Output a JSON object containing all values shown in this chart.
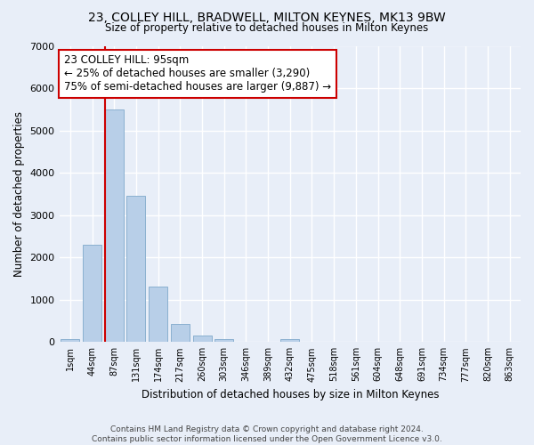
{
  "title1": "23, COLLEY HILL, BRADWELL, MILTON KEYNES, MK13 9BW",
  "title2": "Size of property relative to detached houses in Milton Keynes",
  "xlabel": "Distribution of detached houses by size in Milton Keynes",
  "ylabel": "Number of detached properties",
  "footnote1": "Contains HM Land Registry data © Crown copyright and database right 2024.",
  "footnote2": "Contains public sector information licensed under the Open Government Licence v3.0.",
  "bar_labels": [
    "1sqm",
    "44sqm",
    "87sqm",
    "131sqm",
    "174sqm",
    "217sqm",
    "260sqm",
    "303sqm",
    "346sqm",
    "389sqm",
    "432sqm",
    "475sqm",
    "518sqm",
    "561sqm",
    "604sqm",
    "648sqm",
    "691sqm",
    "734sqm",
    "777sqm",
    "820sqm",
    "863sqm"
  ],
  "bar_values": [
    80,
    2300,
    5500,
    3450,
    1300,
    430,
    160,
    80,
    5,
    5,
    70,
    5,
    0,
    0,
    0,
    0,
    0,
    0,
    0,
    0,
    0
  ],
  "bar_color": "#b8cfe8",
  "bar_edgecolor": "#8ab0d0",
  "background_color": "#e8eef8",
  "grid_color": "#ffffff",
  "vline_color": "#cc0000",
  "annotation_text": "23 COLLEY HILL: 95sqm\n← 25% of detached houses are smaller (3,290)\n75% of semi-detached houses are larger (9,887) →",
  "annotation_box_facecolor": "#ffffff",
  "annotation_box_edgecolor": "#cc0000",
  "ylim": [
    0,
    7000
  ],
  "yticks": [
    0,
    1000,
    2000,
    3000,
    4000,
    5000,
    6000,
    7000
  ]
}
